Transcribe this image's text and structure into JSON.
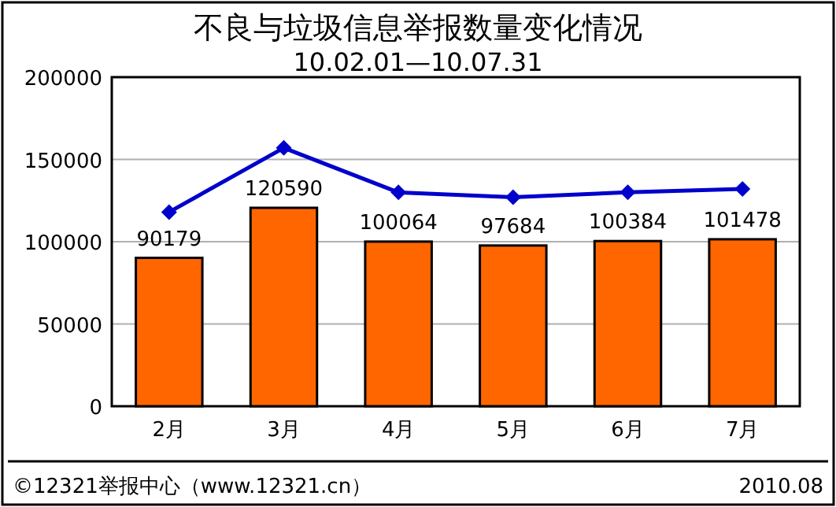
{
  "chart_data": {
    "type": "bar",
    "title": "不良与垃圾信息举报数量变化情况",
    "subtitle": "10.02.01—10.07.31",
    "categories": [
      "2月",
      "3月",
      "4月",
      "5月",
      "6月",
      "7月"
    ],
    "series": [
      {
        "color": "#ff6600",
        "values": [
          90179,
          120590,
          100064,
          97684,
          100384,
          101478
        ],
        "value_labels": [
          "90179",
          "120590",
          "100064",
          "97684",
          "100384",
          "101478"
        ]
      },
      {
        "type": "line",
        "color": "#0000cc",
        "marker": "diamond",
        "values": [
          118000,
          157000,
          130000,
          127000,
          130000,
          132000
        ]
      }
    ],
    "ylim": [
      0,
      200000
    ],
    "yticks": [
      0,
      50000,
      100000,
      150000,
      200000
    ],
    "grid": "y",
    "annotations": [
      "©12321举报中心（www.12321.cn）",
      "2010.08"
    ]
  }
}
